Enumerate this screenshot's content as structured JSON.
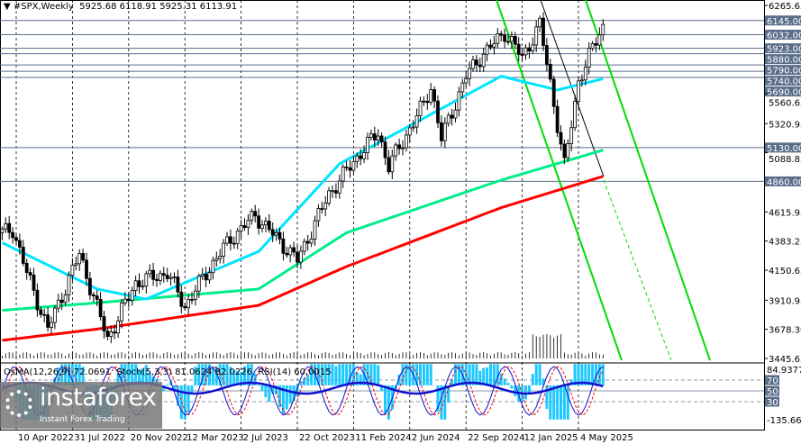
{
  "header": {
    "symbol": "#SPX,Weekly",
    "ohlc": "5925.68 6118.91 5925.31 6113.91"
  },
  "indicator_header": {
    "osma": "OsMA(12,26,9) 72.0691",
    "stoch": "Stoch(5,3,3) 81.0624 82.0226",
    "rsi": "RSI(14) 60.0015"
  },
  "logo": {
    "name": "instaforex",
    "tagline": "Instant Forex Trading"
  },
  "colors": {
    "candle": "#000000",
    "ma_fast": "#00e5ff",
    "ma_mid": "#00ee88",
    "ma_slow": "#ff0000",
    "channel": "#00dd00",
    "level": "#5a6e8a",
    "osma": "#1ec8ff",
    "stoch": "#1010d0",
    "signal": "#ff0000"
  },
  "chart_data": {
    "type": "candlestick",
    "timeframe": "Weekly",
    "price_axis_ticks": [
      "6265.65",
      "5560.65",
      "5320.95",
      "5088.85",
      "4615.95",
      "4383.25",
      "4150.65",
      "3910.95",
      "3678.30",
      "3445.65"
    ],
    "ylim": [
      3445.65,
      6265.65
    ],
    "level_labels": [
      "6145.00",
      "6032.00",
      "5923.00",
      "5880.00",
      "5790.00",
      "5740.00",
      "5690.00",
      "5130.00",
      "4860.00"
    ],
    "date_ticks": [
      "10 Apr 2022",
      "31 Jul 2022",
      "20 Nov 2022",
      "12 Mar 2023",
      "2 Jul 2023",
      "22 Oct 2023",
      "11 Feb 2024",
      "2 Jun 2024",
      "22 Sep 2024",
      "12 Jan 2025",
      "4 May 2025"
    ],
    "price_path": [
      [
        "2022-03-13",
        4450
      ],
      [
        "2022-04-03",
        4480
      ],
      [
        "2022-05-01",
        4130
      ],
      [
        "2022-06-12",
        3680
      ],
      [
        "2022-08-14",
        4280
      ],
      [
        "2022-10-09",
        3600
      ],
      [
        "2022-12-04",
        4050
      ],
      [
        "2023-02-05",
        4130
      ],
      [
        "2023-03-12",
        3860
      ],
      [
        "2023-04-30",
        4170
      ],
      [
        "2023-06-11",
        4400
      ],
      [
        "2023-07-30",
        4590
      ],
      [
        "2023-10-22",
        4230
      ],
      [
        "2023-12-24",
        4760
      ],
      [
        "2024-02-25",
        5090
      ],
      [
        "2024-03-31",
        5250
      ],
      [
        "2024-04-21",
        4980
      ],
      [
        "2024-06-30",
        5480
      ],
      [
        "2024-07-14",
        5620
      ],
      [
        "2024-08-04",
        5200
      ],
      [
        "2024-09-22",
        5700
      ],
      [
        "2024-10-20",
        5850
      ],
      [
        "2024-12-08",
        6050
      ],
      [
        "2025-01-12",
        5850
      ],
      [
        "2025-02-16",
        6110
      ],
      [
        "2025-03-09",
        5650
      ],
      [
        "2025-04-06",
        4980
      ],
      [
        "2025-05-04",
        5660
      ],
      [
        "2025-06-01",
        5920
      ],
      [
        "2025-06-22",
        6113.91
      ]
    ],
    "ma_fast": [
      [
        "2022-03-13",
        4370
      ],
      [
        "2022-09-18",
        4000
      ],
      [
        "2022-12-25",
        3920
      ],
      [
        "2023-08-06",
        4300
      ],
      [
        "2024-01-14",
        5000
      ],
      [
        "2024-12-01",
        5700
      ],
      [
        "2025-03-23",
        5590
      ],
      [
        "2025-06-22",
        5680
      ]
    ],
    "ma_mid": [
      [
        "2022-03-13",
        3830
      ],
      [
        "2022-09-18",
        3890
      ],
      [
        "2023-08-06",
        4000
      ],
      [
        "2024-01-28",
        4450
      ],
      [
        "2024-12-01",
        4870
      ],
      [
        "2025-06-22",
        5110
      ]
    ],
    "ma_slow": [
      [
        "2022-03-13",
        3590
      ],
      [
        "2022-09-18",
        3680
      ],
      [
        "2023-08-06",
        3870
      ],
      [
        "2024-01-28",
        4180
      ],
      [
        "2024-12-01",
        4650
      ],
      [
        "2025-06-22",
        4900
      ]
    ],
    "indicator_ticks": [
      "84.9377",
      "70",
      "50",
      "30",
      "-135.665"
    ],
    "osma_last": 72.0691,
    "stoch_main": 81.0624,
    "stoch_signal": 82.0226,
    "rsi": 60.0015
  }
}
